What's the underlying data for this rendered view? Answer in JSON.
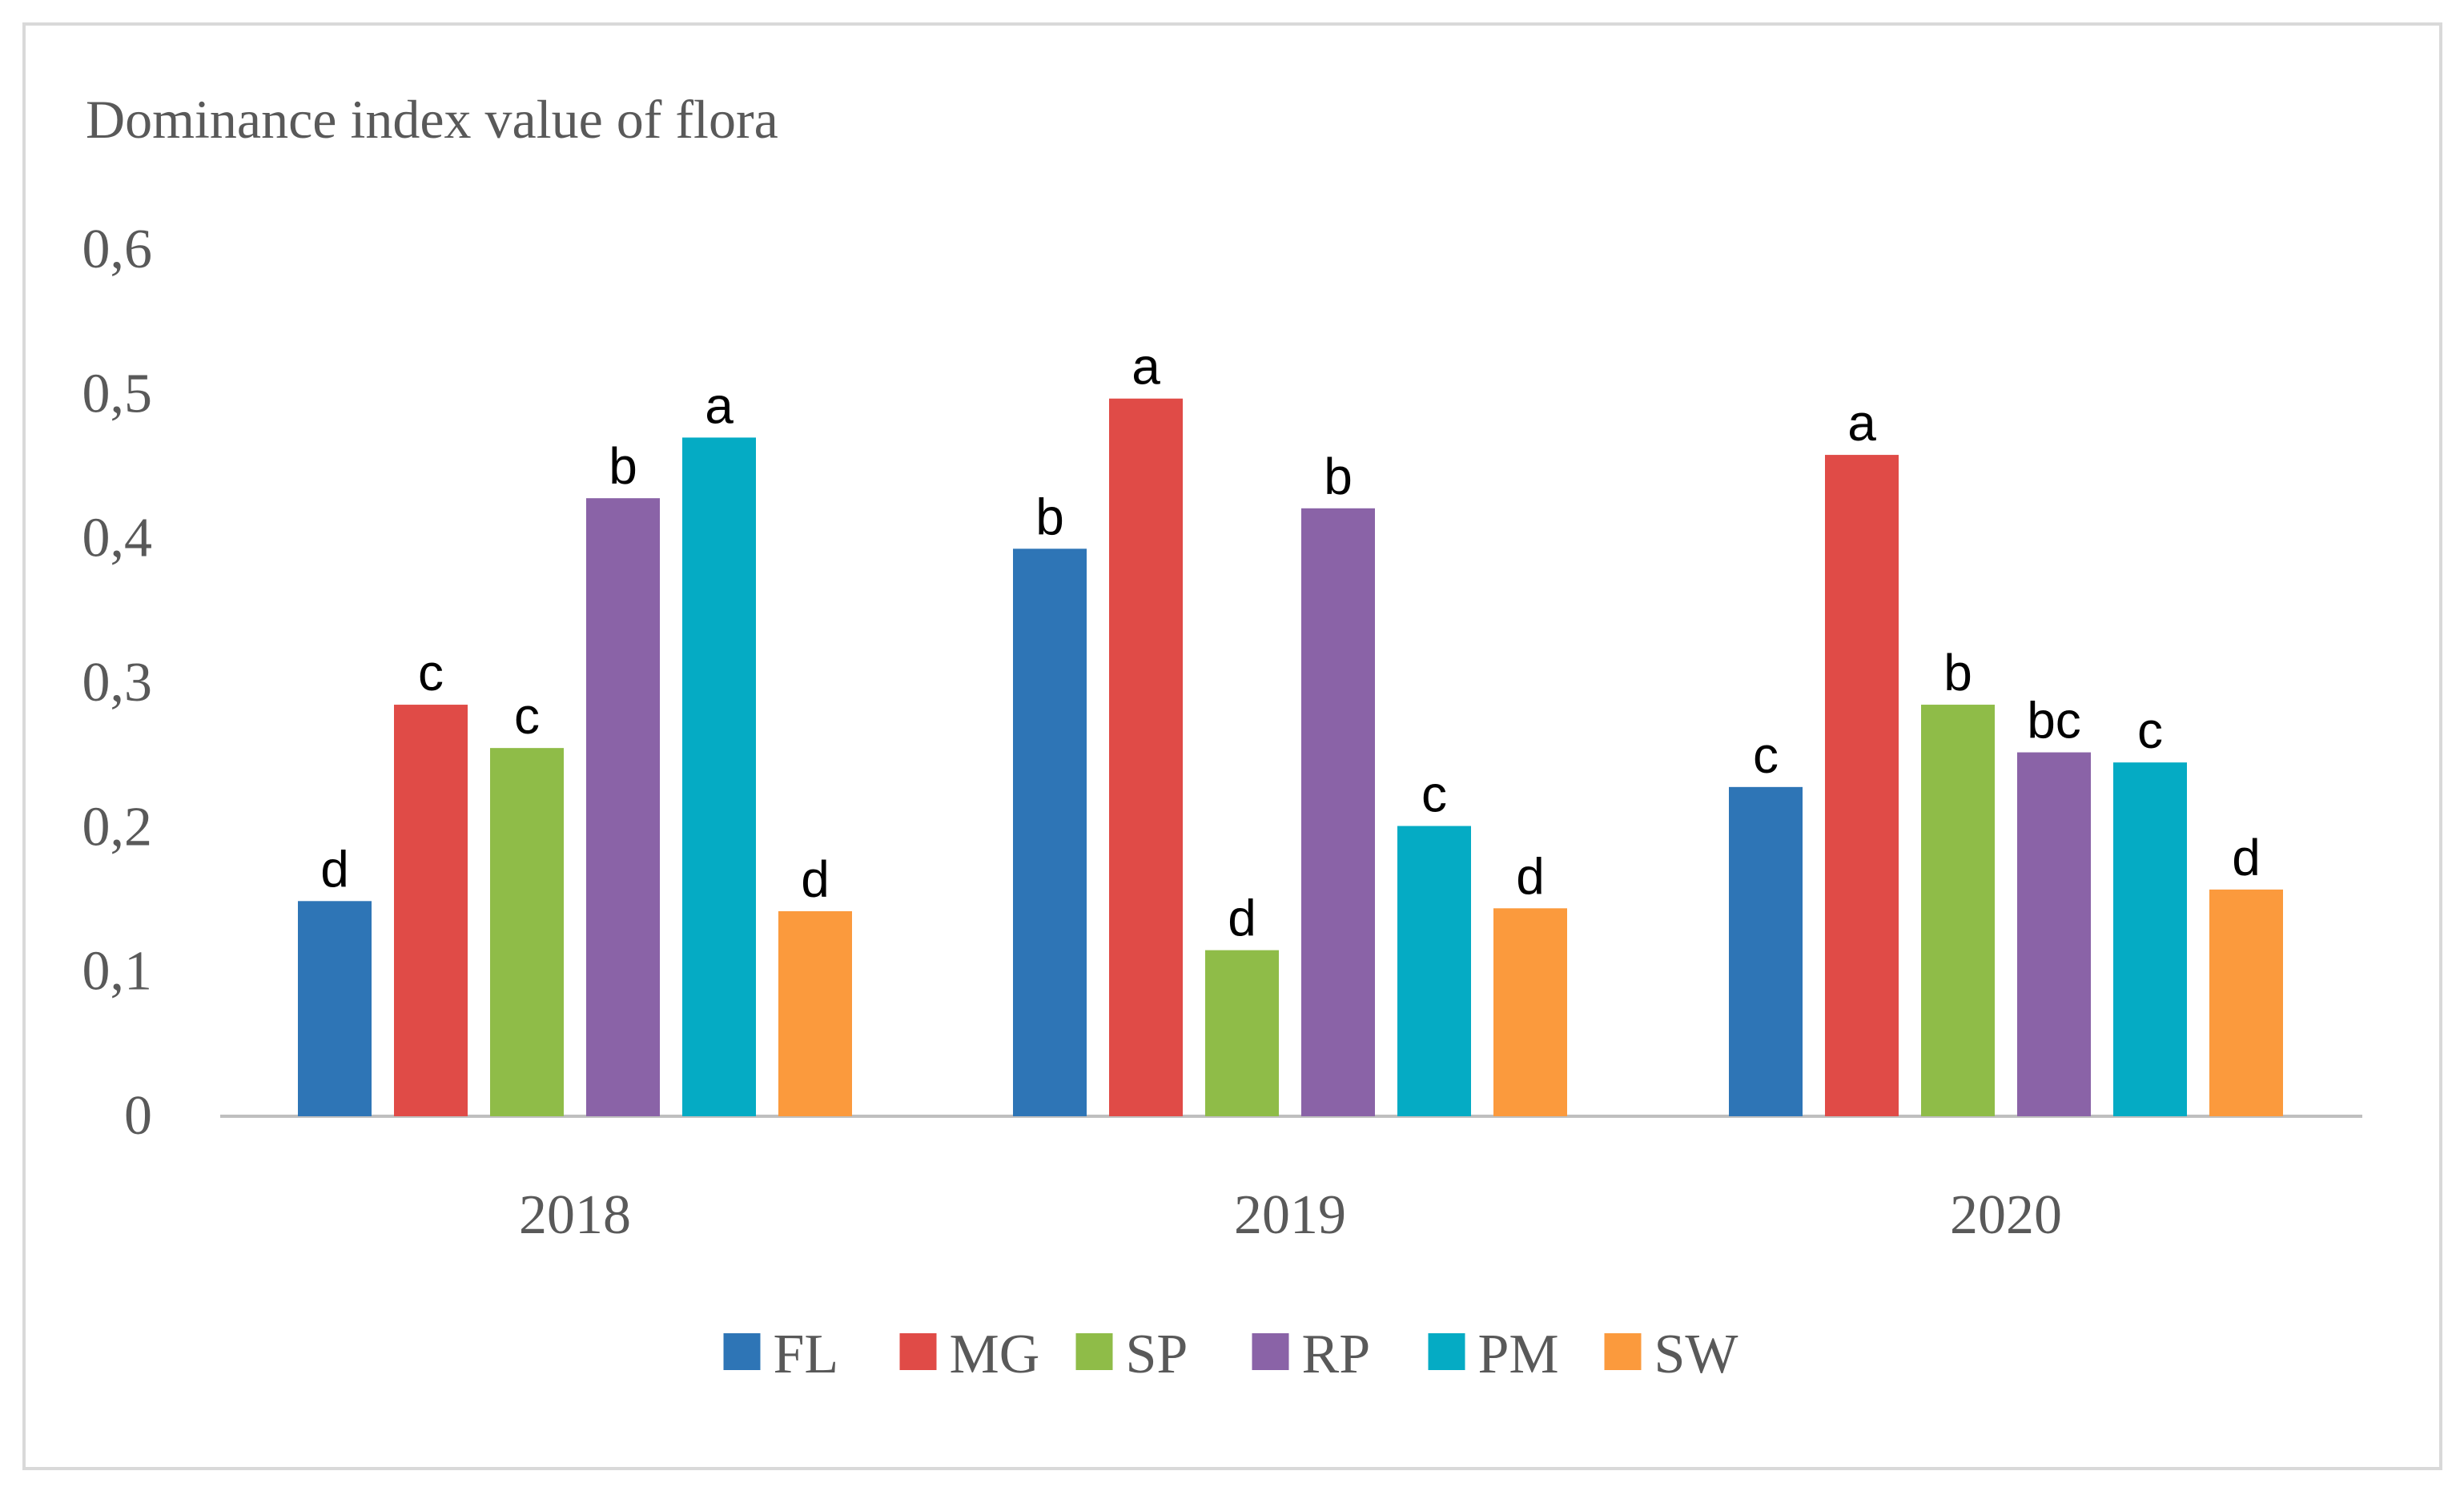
{
  "chart_data": {
    "type": "bar",
    "title": "Dominance index value of flora",
    "xlabel": "",
    "ylabel": "",
    "categories": [
      "2018",
      "2019",
      "2020"
    ],
    "ylim": [
      0,
      0.6
    ],
    "yticks": [
      0,
      0.1,
      0.2,
      0.3,
      0.4,
      0.5,
      0.6
    ],
    "ytick_labels": [
      "0",
      "0,1",
      "0,2",
      "0,3",
      "0,4",
      "0,5",
      "0,6"
    ],
    "grid": false,
    "legend_position": "bottom",
    "series": [
      {
        "name": "FL",
        "color": "#2e75b6",
        "values": [
          0.149,
          0.393,
          0.228
        ],
        "labels": [
          "d",
          "b",
          "c"
        ]
      },
      {
        "name": "MG",
        "color": "#e04b47",
        "values": [
          0.285,
          0.497,
          0.458
        ],
        "labels": [
          "c",
          "a",
          "a"
        ]
      },
      {
        "name": "SP",
        "color": "#8fbc48",
        "values": [
          0.255,
          0.115,
          0.285
        ],
        "labels": [
          "c",
          "d",
          "b"
        ]
      },
      {
        "name": "RP",
        "color": "#8a63a7",
        "values": [
          0.428,
          0.421,
          0.252
        ],
        "labels": [
          "b",
          "b",
          "bc"
        ]
      },
      {
        "name": "PM",
        "color": "#05abc4",
        "values": [
          0.47,
          0.201,
          0.245
        ],
        "labels": [
          "a",
          "c",
          "c"
        ]
      },
      {
        "name": "SW",
        "color": "#fb9a3d",
        "values": [
          0.142,
          0.144,
          0.157
        ],
        "labels": [
          "d",
          "d",
          "d"
        ]
      }
    ]
  }
}
